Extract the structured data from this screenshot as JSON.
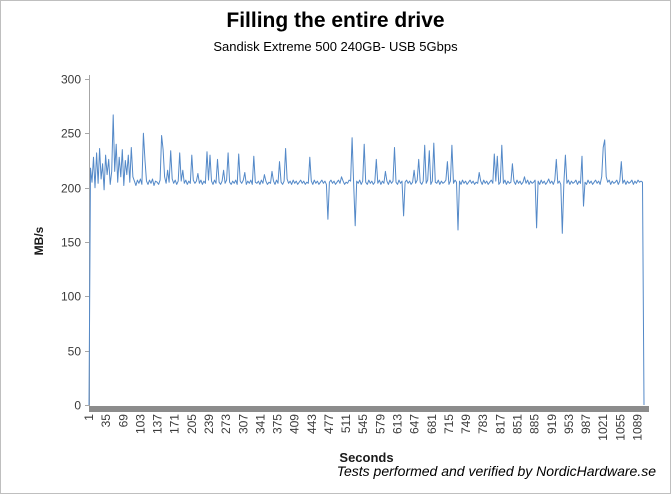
{
  "window": {
    "background": "#ffffff",
    "border_color": "#bfbfbf"
  },
  "chart_data": {
    "type": "line",
    "title": "Filling the entire drive",
    "subtitle": "Sandisk Extreme 500 240GB- USB 5Gbps",
    "xlabel": "Seconds",
    "ylabel": "MB/s",
    "footer": "Tests performed and verified by NordicHardware.se",
    "ylim": [
      0,
      300
    ],
    "y_ticks": [
      0,
      50,
      100,
      150,
      200,
      250,
      300
    ],
    "x_tick_labels": [
      1,
      35,
      69,
      103,
      137,
      171,
      205,
      239,
      273,
      307,
      341,
      375,
      409,
      443,
      477,
      511,
      545,
      579,
      613,
      647,
      681,
      715,
      749,
      783,
      817,
      851,
      885,
      919,
      953,
      987,
      1021,
      1055,
      1089
    ],
    "x_start": 1,
    "x_step": 3,
    "grid": false,
    "legend": "none",
    "colors": {
      "line": "#5489C8",
      "axis": "#A6A6A6",
      "axis_band": "#8C8C8C",
      "tick_text": "#3A3A3A"
    },
    "values": [
      0,
      218,
      205,
      228,
      200,
      232,
      204,
      236,
      208,
      222,
      198,
      230,
      212,
      226,
      203,
      215,
      267,
      215,
      240,
      205,
      228,
      210,
      235,
      202,
      225,
      212,
      230,
      205,
      237,
      210,
      206,
      202,
      207,
      204,
      208,
      203,
      250,
      225,
      206,
      203,
      207,
      204,
      208,
      202,
      206,
      205,
      203,
      207,
      248,
      235,
      210,
      204,
      216,
      205,
      234,
      208,
      204,
      207,
      203,
      206,
      232,
      206,
      216,
      204,
      207,
      203,
      206,
      204,
      230,
      207,
      204,
      206,
      213,
      204,
      207,
      203,
      206,
      204,
      233,
      207,
      230,
      206,
      203,
      207,
      204,
      226,
      205,
      203,
      206,
      216,
      204,
      207,
      232,
      205,
      203,
      206,
      204,
      207,
      203,
      231,
      206,
      204,
      207,
      214,
      203,
      206,
      204,
      207,
      203,
      229,
      205,
      204,
      206,
      203,
      207,
      204,
      212,
      206,
      203,
      205,
      204,
      215,
      206,
      203,
      207,
      204,
      224,
      205,
      203,
      206,
      236,
      208,
      204,
      206,
      203,
      207,
      204,
      206,
      203,
      205,
      207,
      204,
      206,
      203,
      205,
      204,
      228,
      206,
      203,
      207,
      204,
      206,
      203,
      205,
      207,
      204,
      206,
      203,
      171,
      205,
      207,
      204,
      206,
      203,
      205,
      207,
      204,
      210,
      206,
      203,
      205,
      204,
      207,
      206,
      246,
      205,
      165,
      206,
      204,
      207,
      203,
      206,
      240,
      205,
      203,
      207,
      204,
      206,
      203,
      205,
      226,
      204,
      207,
      203,
      206,
      204,
      215,
      206,
      203,
      207,
      204,
      206,
      237,
      205,
      203,
      207,
      204,
      206,
      174,
      205,
      207,
      204,
      206,
      203,
      205,
      216,
      204,
      207,
      226,
      205,
      203,
      206,
      239,
      204,
      207,
      234,
      203,
      206,
      241,
      205,
      204,
      207,
      203,
      206,
      204,
      205,
      207,
      224,
      203,
      206,
      239,
      204,
      207,
      205,
      161,
      206,
      203,
      207,
      204,
      206,
      203,
      205,
      207,
      204,
      206,
      203,
      205,
      204,
      214,
      206,
      203,
      207,
      204,
      206,
      203,
      205,
      207,
      204,
      231,
      206,
      229,
      203,
      205,
      239,
      204,
      207,
      203,
      206,
      204,
      205,
      222,
      206,
      203,
      207,
      204,
      206,
      203,
      205,
      210,
      204,
      207,
      203,
      206,
      204,
      205,
      207,
      163,
      206,
      203,
      207,
      204,
      206,
      203,
      205,
      208,
      204,
      206,
      203,
      207,
      226,
      204,
      206,
      203,
      158,
      205,
      230,
      204,
      207,
      203,
      206,
      204,
      205,
      207,
      203,
      206,
      204,
      229,
      183,
      205,
      203,
      207,
      204,
      206,
      203,
      205,
      207,
      204,
      206,
      203,
      210,
      237,
      244,
      210,
      205,
      207,
      203,
      206,
      204,
      205,
      207,
      203,
      206,
      224,
      204,
      207,
      203,
      206,
      204,
      205,
      207,
      203,
      206,
      204,
      207,
      205,
      206,
      205,
      0
    ]
  }
}
